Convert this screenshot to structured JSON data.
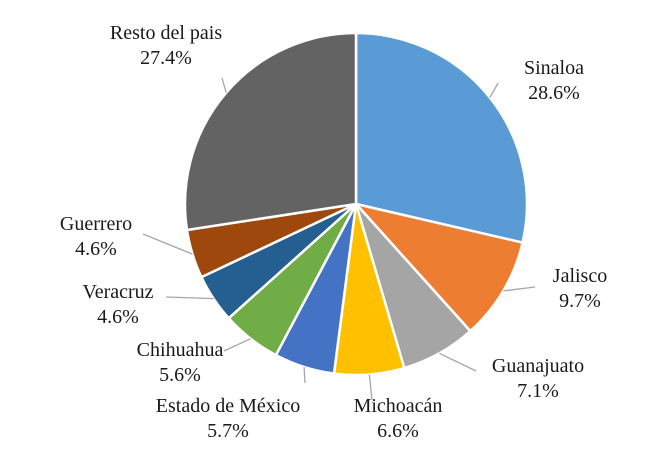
{
  "chart_data": {
    "type": "pie",
    "title": "",
    "start_angle_deg": 0,
    "direction": "clockwise",
    "legend": "none",
    "slices": [
      {
        "label": "Sinaloa",
        "value": 28.6,
        "value_label": "28.6%",
        "color": "#5b9bd5"
      },
      {
        "label": "Jalisco",
        "value": 9.7,
        "value_label": "9.7%",
        "color": "#ed7d31"
      },
      {
        "label": "Guanajuato",
        "value": 7.1,
        "value_label": "7.1%",
        "color": "#a5a5a5"
      },
      {
        "label": "Michoacán",
        "value": 6.6,
        "value_label": "6.6%",
        "color": "#ffc000"
      },
      {
        "label": "Estado de México",
        "value": 5.7,
        "value_label": "5.7%",
        "color": "#4472c4"
      },
      {
        "label": "Chihuahua",
        "value": 5.6,
        "value_label": "5.6%",
        "color": "#70ad47"
      },
      {
        "label": "Veracruz",
        "value": 4.6,
        "value_label": "4.6%",
        "color": "#255e91"
      },
      {
        "label": "Guerrero",
        "value": 4.6,
        "value_label": "4.6%",
        "color": "#9e480e"
      },
      {
        "label": "Resto del pais",
        "value": 27.4,
        "value_label": "27.4%",
        "color": "#636363"
      }
    ]
  }
}
